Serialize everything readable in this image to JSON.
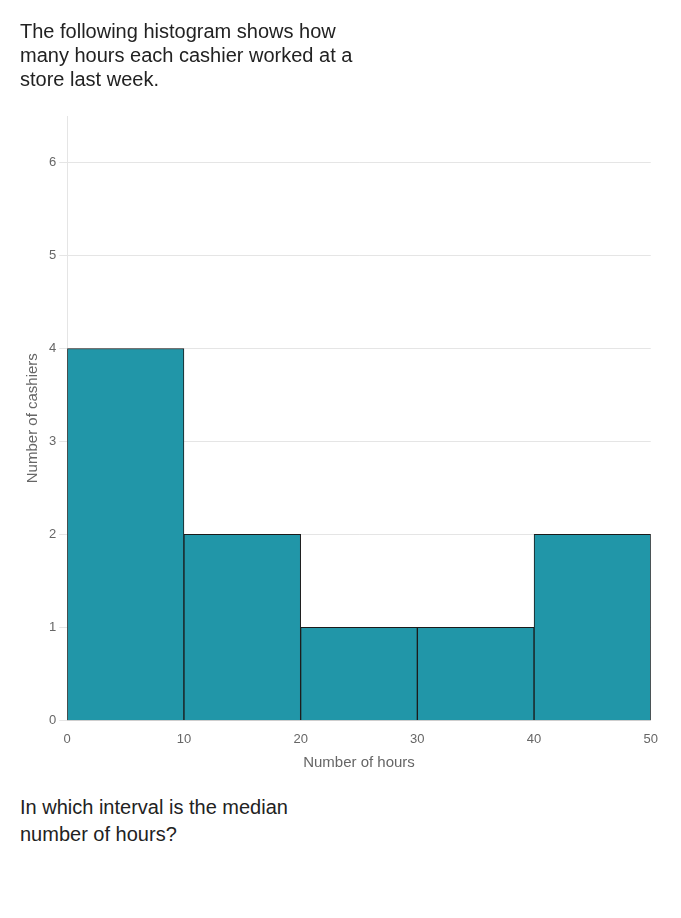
{
  "chart_data": {
    "type": "histogram",
    "title": "The following histogram shows how\nmany hours each cashier worked at a\nstore last week.",
    "annotations": [
      "In which interval is the median\nnumber of hours?"
    ],
    "x_label": "Number of hours",
    "y_label": "Number of cashiers",
    "bins": [
      0,
      10,
      20,
      30,
      40,
      50
    ],
    "values": [
      4,
      2,
      1,
      1,
      2
    ],
    "color": "#2196A8",
    "xlim": [
      0,
      50
    ],
    "xticks": [
      0,
      10,
      20,
      30,
      40,
      50
    ],
    "ylim": [
      0,
      6.5
    ],
    "yticks": [
      0,
      1,
      2,
      3,
      4,
      5,
      6
    ],
    "grid": true
  }
}
